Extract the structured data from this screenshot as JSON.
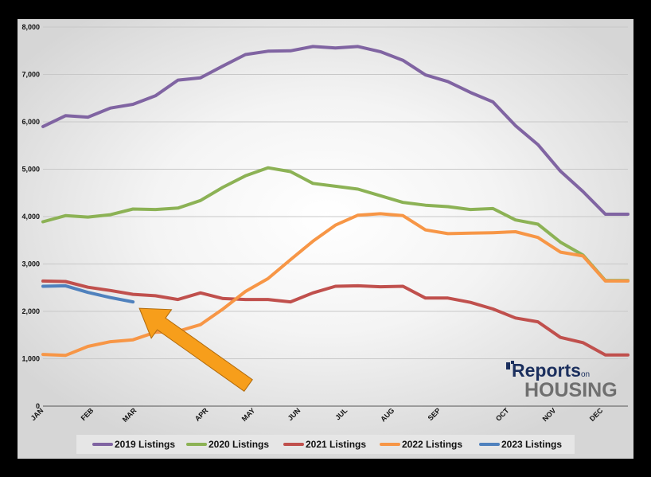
{
  "chart_data": {
    "type": "line",
    "title": "",
    "xlabel": "",
    "ylabel": "",
    "ylim": [
      0,
      8000
    ],
    "yticks": [
      0,
      1000,
      2000,
      3000,
      4000,
      5000,
      6000,
      7000,
      8000
    ],
    "ytick_labels": [
      "0",
      "1,000",
      "2,000",
      "3,000",
      "4,000",
      "5,000",
      "6,000",
      "7,000",
      "8,000"
    ],
    "grid": true,
    "legend_position": "bottom",
    "x_domain": [
      0,
      52
    ],
    "month_ticks": [
      {
        "label": "JAN",
        "x": 0
      },
      {
        "label": "FEB",
        "x": 5
      },
      {
        "label": "MAR",
        "x": 10
      },
      {
        "label": "APR",
        "x": 17
      },
      {
        "label": "MAY",
        "x": 22
      },
      {
        "label": "JUN",
        "x": 27
      },
      {
        "label": "JUL",
        "x": 32
      },
      {
        "label": "AUG",
        "x": 37
      },
      {
        "label": "SEP",
        "x": 42
      },
      {
        "label": "OCT",
        "x": 50
      },
      {
        "label": "NOV",
        "x": 55
      },
      {
        "label": "DEC",
        "x": 60
      }
    ],
    "series": [
      {
        "name": "2019 Listings",
        "color": "#8064a2",
        "x": [
          0,
          2,
          4,
          6,
          8,
          10,
          12,
          14,
          16,
          18,
          20,
          22,
          24,
          26,
          28,
          30,
          32,
          34,
          36,
          38,
          40,
          42,
          44,
          46,
          48,
          50,
          52
        ],
        "y": [
          5900,
          6130,
          6100,
          6290,
          6370,
          6550,
          6880,
          6930,
          7180,
          7420,
          7490,
          7500,
          7590,
          7560,
          7590,
          7480,
          7300,
          6990,
          6850,
          6620,
          6420,
          5920,
          5520,
          4960,
          4530,
          4050,
          4050
        ]
      },
      {
        "name": "2020 Listings",
        "color": "#8cb255",
        "x": [
          0,
          2,
          4,
          6,
          8,
          10,
          12,
          14,
          16,
          18,
          20,
          22,
          24,
          26,
          28,
          30,
          32,
          34,
          36,
          38,
          40,
          42,
          44,
          46,
          48,
          50,
          52
        ],
        "y": [
          3890,
          4020,
          3990,
          4040,
          4160,
          4150,
          4180,
          4340,
          4620,
          4860,
          5030,
          4950,
          4700,
          4640,
          4580,
          4440,
          4300,
          4240,
          4210,
          4150,
          4170,
          3930,
          3840,
          3460,
          3190,
          2650,
          2650
        ]
      },
      {
        "name": "2021 Listings",
        "color": "#c0504d",
        "x": [
          0,
          2,
          4,
          6,
          8,
          10,
          12,
          14,
          16,
          18,
          20,
          22,
          24,
          26,
          28,
          30,
          32,
          34,
          36,
          38,
          40,
          42,
          44,
          46,
          48,
          50,
          52
        ],
        "y": [
          2640,
          2630,
          2510,
          2440,
          2360,
          2330,
          2250,
          2390,
          2270,
          2250,
          2250,
          2200,
          2390,
          2530,
          2540,
          2520,
          2530,
          2280,
          2280,
          2190,
          2050,
          1860,
          1780,
          1450,
          1340,
          1080,
          1080
        ]
      },
      {
        "name": "2022 Listings",
        "color": "#f79646",
        "x": [
          0,
          2,
          4,
          6,
          8,
          10,
          12,
          14,
          16,
          18,
          20,
          22,
          24,
          26,
          28,
          30,
          32,
          34,
          36,
          38,
          40,
          42,
          44,
          46,
          48,
          50,
          52
        ],
        "y": [
          1090,
          1070,
          1260,
          1360,
          1400,
          1560,
          1580,
          1720,
          2050,
          2420,
          2690,
          3090,
          3480,
          3820,
          4030,
          4060,
          4020,
          3720,
          3640,
          3650,
          3660,
          3680,
          3560,
          3250,
          3170,
          2640,
          2640
        ]
      },
      {
        "name": "2023 Listings",
        "color": "#4f81bd",
        "x": [
          0,
          2,
          4,
          6,
          8
        ],
        "y": [
          2530,
          2540,
          2400,
          2290,
          2200
        ]
      }
    ],
    "arrow_color": "#f79e1b"
  },
  "logo": {
    "line1_main": "Reports",
    "line1_small": "on",
    "line2": "HOUSING"
  }
}
